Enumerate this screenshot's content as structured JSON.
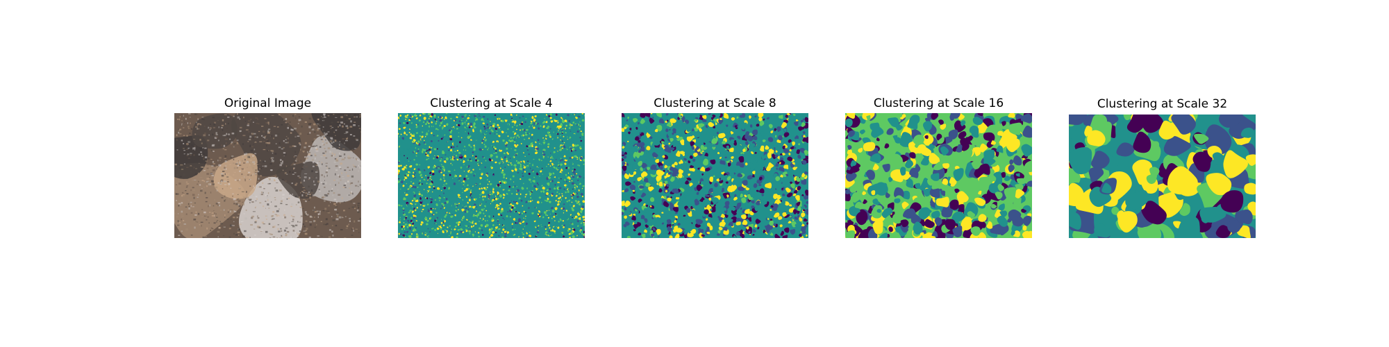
{
  "figure": {
    "panels": [
      {
        "title": "Original Image",
        "kind": "photo"
      },
      {
        "title": "Clustering at Scale 4",
        "kind": "clusters",
        "scale": 4
      },
      {
        "title": "Clustering at Scale 8",
        "kind": "clusters",
        "scale": 8
      },
      {
        "title": "Clustering at Scale 16",
        "kind": "clusters",
        "scale": 16
      },
      {
        "title": "Clustering at Scale 32",
        "kind": "clusters",
        "scale": 32
      }
    ],
    "cluster_colors": [
      "#440154",
      "#3b528b",
      "#21918c",
      "#5ec962",
      "#fde725"
    ],
    "photo_colors": [
      "#3f3b3a",
      "#6d5b4f",
      "#a38a72",
      "#c9a888",
      "#d8d2cf",
      "#bdb8b5",
      "#504843"
    ]
  }
}
